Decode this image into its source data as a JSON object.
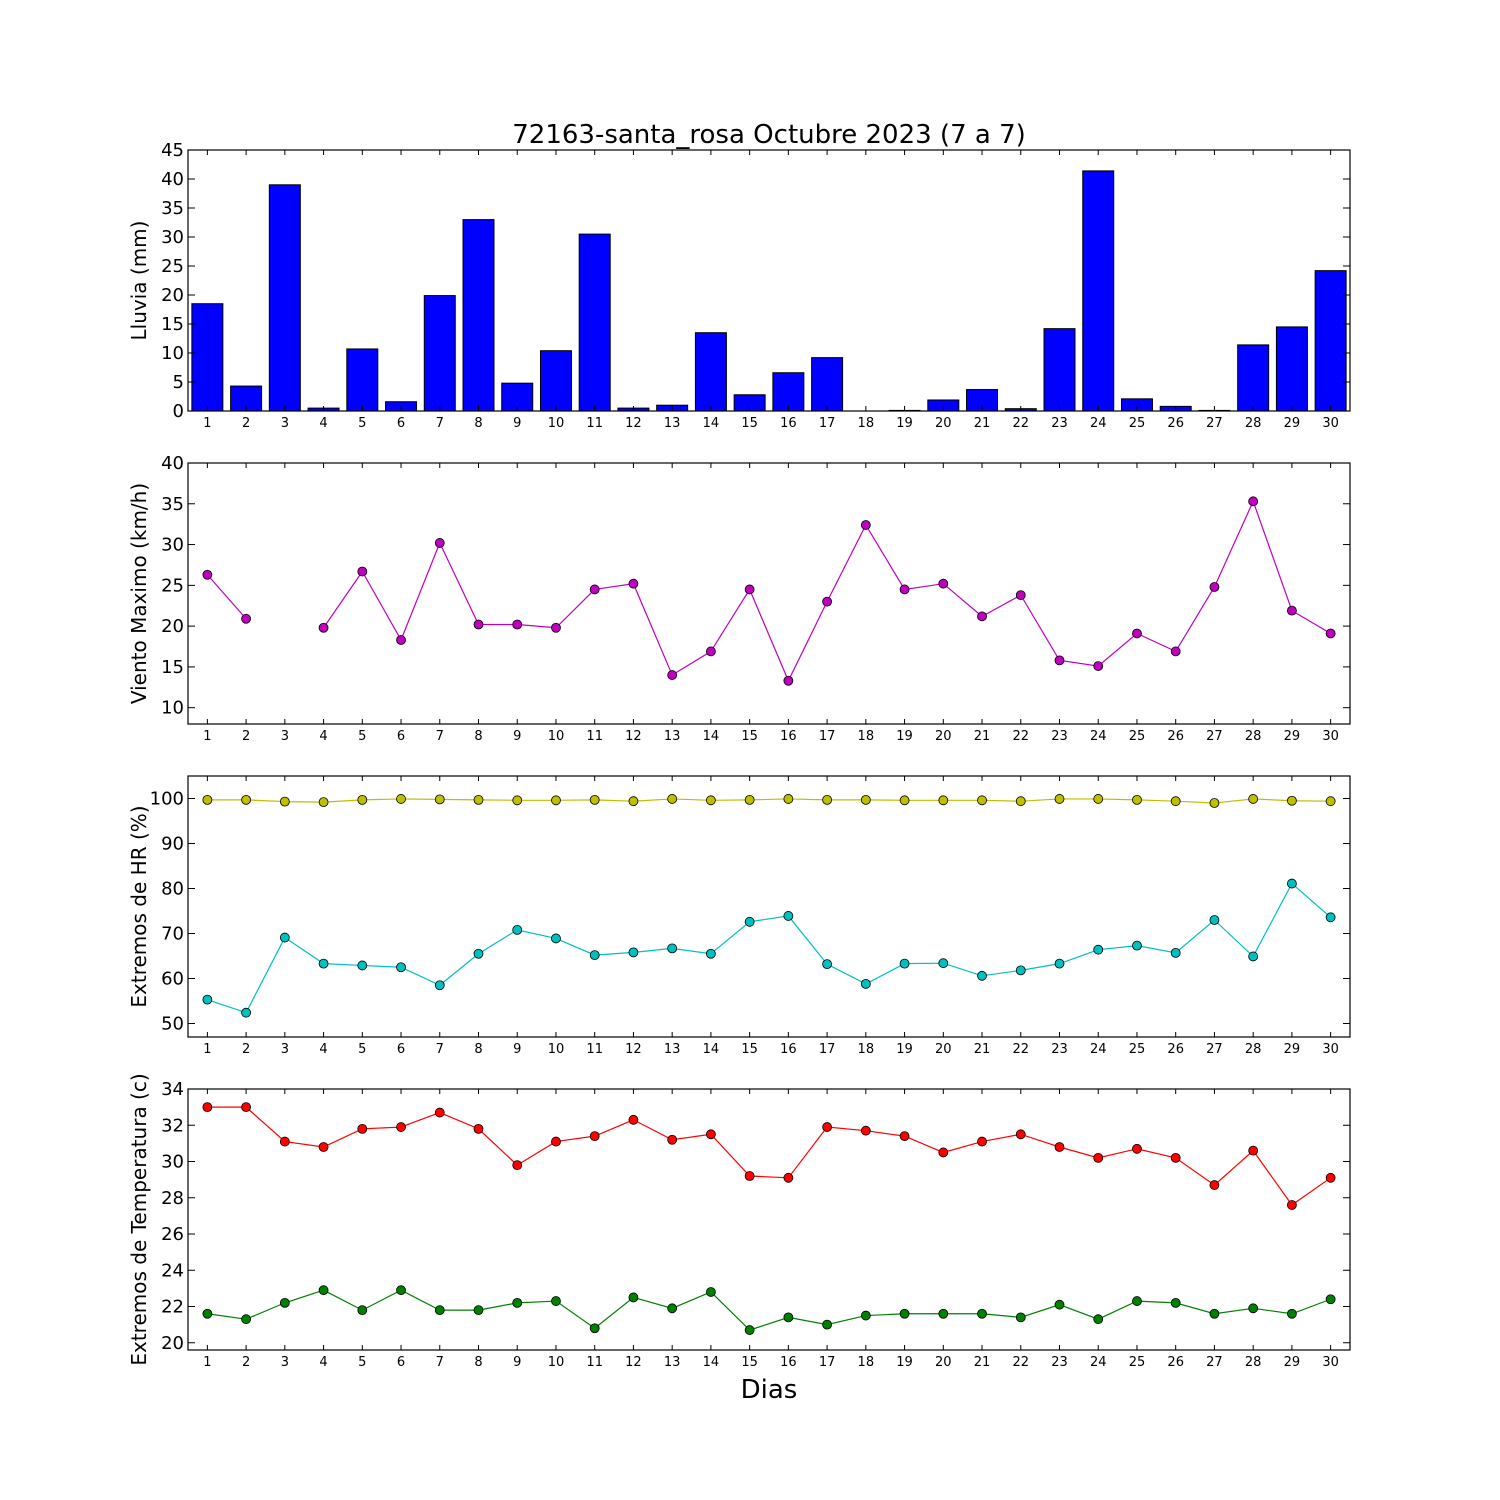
{
  "chart_data": [
    {
      "type": "bar",
      "title": "72163-santa_rosa Octubre 2023  (7 a 7)",
      "ylabel": "Lluvia (mm)",
      "xlabel": "",
      "categories": [
        "1",
        "2",
        "3",
        "4",
        "5",
        "6",
        "7",
        "8",
        "9",
        "10",
        "11",
        "12",
        "13",
        "14",
        "15",
        "16",
        "17",
        "18",
        "19",
        "20",
        "21",
        "22",
        "23",
        "24",
        "25",
        "26",
        "27",
        "28",
        "29",
        "30"
      ],
      "values": [
        18.5,
        4.3,
        39.0,
        0.5,
        10.7,
        1.6,
        19.9,
        33.0,
        4.8,
        10.4,
        30.5,
        0.5,
        1.0,
        13.5,
        2.8,
        6.6,
        9.2,
        0.0,
        0.1,
        1.9,
        3.7,
        0.4,
        14.2,
        41.4,
        2.1,
        0.8,
        0.1,
        11.4,
        14.5,
        24.2
      ],
      "ylim": [
        0,
        45
      ],
      "yticks": [
        0,
        5,
        10,
        15,
        20,
        25,
        30,
        35,
        40,
        45
      ],
      "bar_color": "#0000ff",
      "grid": false
    },
    {
      "type": "line",
      "title": "",
      "ylabel": "Viento Maximo (km/h)",
      "xlabel": "",
      "x": [
        1,
        2,
        3,
        4,
        5,
        6,
        7,
        8,
        9,
        10,
        11,
        12,
        13,
        14,
        15,
        16,
        17,
        18,
        19,
        20,
        21,
        22,
        23,
        24,
        25,
        26,
        27,
        28,
        29,
        30
      ],
      "series": [
        {
          "color": "#bf00bf",
          "values": [
            26.3,
            20.9,
            null,
            19.8,
            26.7,
            18.3,
            30.2,
            20.2,
            20.2,
            19.8,
            24.5,
            25.2,
            14.0,
            16.9,
            24.5,
            13.3,
            23.0,
            32.4,
            24.5,
            25.2,
            21.2,
            23.8,
            15.8,
            15.1,
            19.1,
            16.9,
            24.8,
            35.3,
            21.9,
            19.1
          ]
        }
      ],
      "ylim": [
        8,
        40
      ],
      "yticks": [
        10,
        15,
        20,
        25,
        30,
        35,
        40
      ],
      "grid": false
    },
    {
      "type": "line",
      "title": "",
      "ylabel": "Extremos de HR (%)",
      "xlabel": "",
      "x": [
        1,
        2,
        3,
        4,
        5,
        6,
        7,
        8,
        9,
        10,
        11,
        12,
        13,
        14,
        15,
        16,
        17,
        18,
        19,
        20,
        21,
        22,
        23,
        24,
        25,
        26,
        27,
        28,
        29,
        30
      ],
      "series": [
        {
          "color": "#bfbf00",
          "values": [
            99.7,
            99.7,
            99.3,
            99.2,
            99.7,
            99.9,
            99.8,
            99.7,
            99.6,
            99.6,
            99.7,
            99.4,
            99.9,
            99.6,
            99.7,
            99.9,
            99.7,
            99.7,
            99.6,
            99.6,
            99.6,
            99.4,
            99.9,
            99.9,
            99.7,
            99.4,
            99.0,
            99.9,
            99.5,
            99.4
          ]
        },
        {
          "color": "#00bfbf",
          "values": [
            55.3,
            52.4,
            69.1,
            63.3,
            62.9,
            62.5,
            58.5,
            65.5,
            70.8,
            68.9,
            65.2,
            65.8,
            66.7,
            65.5,
            72.6,
            73.9,
            63.2,
            58.8,
            63.3,
            63.4,
            60.6,
            61.8,
            63.3,
            66.4,
            67.3,
            65.7,
            73.0,
            64.9,
            81.1,
            73.6
          ]
        }
      ],
      "ylim": [
        47,
        105
      ],
      "yticks": [
        50,
        60,
        70,
        80,
        90,
        100
      ],
      "grid": false
    },
    {
      "type": "line",
      "title": "",
      "ylabel": "Extremos de Temperatura (c)",
      "xlabel": "Dias",
      "x": [
        1,
        2,
        3,
        4,
        5,
        6,
        7,
        8,
        9,
        10,
        11,
        12,
        13,
        14,
        15,
        16,
        17,
        18,
        19,
        20,
        21,
        22,
        23,
        24,
        25,
        26,
        27,
        28,
        29,
        30
      ],
      "series": [
        {
          "color": "#ff0000",
          "values": [
            33.0,
            33.0,
            31.1,
            30.8,
            31.8,
            31.9,
            32.7,
            31.8,
            29.8,
            31.1,
            31.4,
            32.3,
            31.2,
            31.5,
            29.2,
            29.1,
            31.9,
            31.7,
            31.4,
            30.5,
            31.1,
            31.5,
            30.8,
            30.2,
            30.7,
            30.2,
            28.7,
            30.6,
            27.6,
            29.1
          ]
        },
        {
          "color": "#008000",
          "values": [
            21.6,
            21.3,
            22.2,
            22.9,
            21.8,
            22.9,
            21.8,
            21.8,
            22.2,
            22.3,
            20.8,
            22.5,
            21.9,
            22.8,
            20.7,
            21.4,
            21.0,
            21.5,
            21.6,
            21.6,
            21.6,
            21.4,
            22.1,
            21.3,
            22.3,
            22.2,
            21.6,
            21.9,
            21.6,
            22.4
          ]
        }
      ],
      "ylim": [
        19.6,
        34
      ],
      "yticks": [
        20,
        22,
        24,
        26,
        28,
        30,
        32,
        34
      ],
      "grid": false
    }
  ]
}
